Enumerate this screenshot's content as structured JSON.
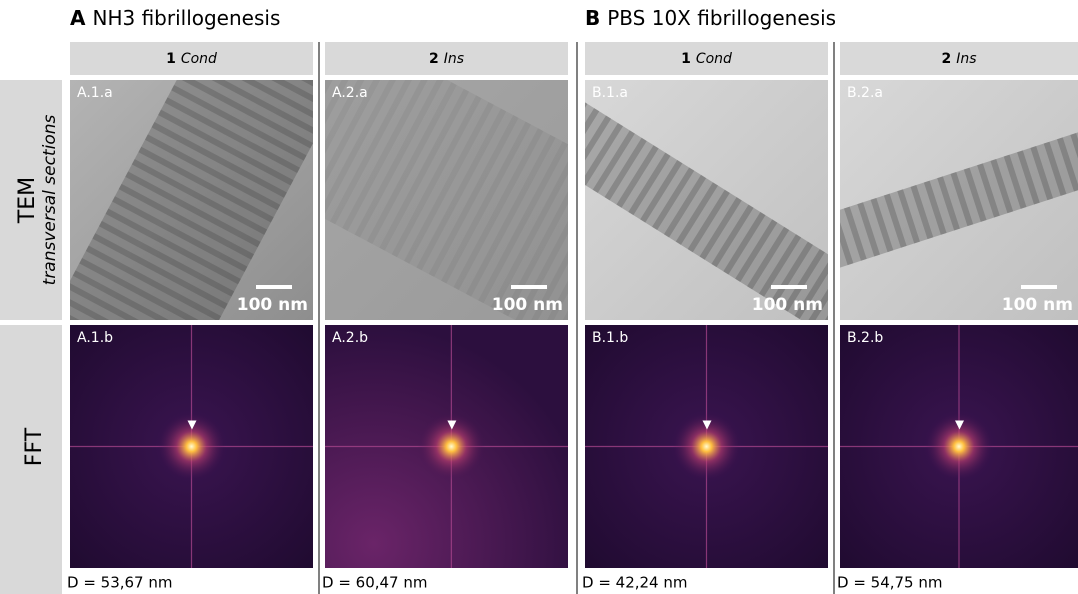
{
  "groups": [
    {
      "letter": "A",
      "title": "NH3 fibrillogenesis",
      "columns": [
        {
          "number": "1",
          "name": "Cond",
          "tem_label": "A.1.a",
          "fft_label": "A.1.b",
          "scale_bar": "100 nm",
          "distance": "D = 53,67 nm"
        },
        {
          "number": "2",
          "name": "Ins",
          "tem_label": "A.2.a",
          "fft_label": "A.2.b",
          "scale_bar": "100 nm",
          "distance": "D = 60,47 nm"
        }
      ]
    },
    {
      "letter": "B",
      "title": "PBS 10X fibrillogenesis",
      "columns": [
        {
          "number": "1",
          "name": "Cond",
          "tem_label": "B.1.a",
          "fft_label": "B.1.b",
          "scale_bar": "100 nm",
          "distance": "D = 42,24 nm"
        },
        {
          "number": "2",
          "name": "Ins",
          "tem_label": "B.2.a",
          "fft_label": "B.2.b",
          "scale_bar": "100 nm",
          "distance": "D = 54,75 nm"
        }
      ]
    }
  ],
  "row_labels": {
    "tem": "TEM",
    "tem_sub": "transversal sections",
    "fft": "FFT"
  }
}
